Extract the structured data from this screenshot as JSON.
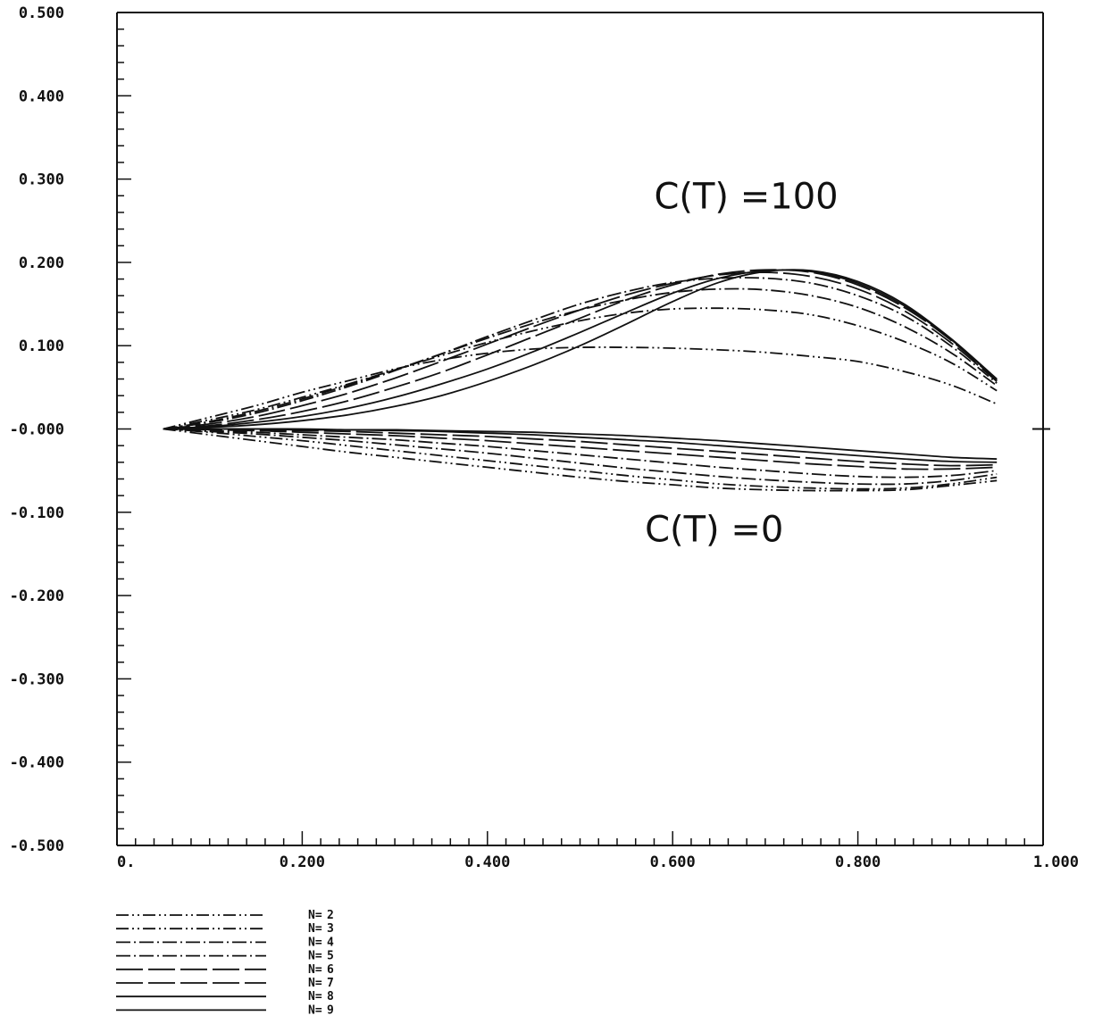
{
  "chart_data": {
    "type": "line",
    "title": "",
    "xlabel": "",
    "ylabel": "",
    "xlim": [
      0,
      1.0
    ],
    "ylim": [
      -0.5,
      0.5
    ],
    "grid": false,
    "legend_position": "bottom-left",
    "x_tick_labels": [
      "0.",
      "0.200",
      "0.400",
      "0.600",
      "0.800",
      "1.000"
    ],
    "y_tick_labels": [
      "0.500",
      "0.400",
      "0.300",
      "0.200",
      "0.100",
      "-0.000",
      "-0.100",
      "-0.200",
      "-0.300",
      "-0.400",
      "-0.500"
    ],
    "annotations": [
      {
        "text": "C(T) =100",
        "x": 0.58,
        "y": 0.265
      },
      {
        "text": "C(T) =0",
        "x": 0.57,
        "y": -0.135
      }
    ],
    "x": [
      0.05,
      0.1,
      0.15,
      0.2,
      0.25,
      0.3,
      0.35,
      0.4,
      0.45,
      0.5,
      0.55,
      0.6,
      0.65,
      0.7,
      0.75,
      0.8,
      0.85,
      0.9,
      0.95
    ],
    "series": [
      {
        "name": "N= 2",
        "dash": "dashdotdot",
        "upper": [
          0.0,
          0.014,
          0.028,
          0.044,
          0.058,
          0.072,
          0.083,
          0.091,
          0.096,
          0.098,
          0.098,
          0.097,
          0.095,
          0.092,
          0.087,
          0.081,
          0.069,
          0.053,
          0.03
        ],
        "lower": [
          0.0,
          -0.007,
          -0.014,
          -0.021,
          -0.028,
          -0.034,
          -0.04,
          -0.046,
          -0.052,
          -0.058,
          -0.063,
          -0.067,
          -0.071,
          -0.073,
          -0.074,
          -0.074,
          -0.073,
          -0.068,
          -0.062
        ]
      },
      {
        "name": "N= 3",
        "dash": "dashdotdot",
        "upper": [
          0.0,
          0.011,
          0.023,
          0.038,
          0.054,
          0.071,
          0.088,
          0.104,
          0.118,
          0.13,
          0.139,
          0.144,
          0.145,
          0.143,
          0.137,
          0.124,
          0.105,
          0.08,
          0.046
        ],
        "lower": [
          0.0,
          -0.004,
          -0.009,
          -0.014,
          -0.02,
          -0.026,
          -0.032,
          -0.038,
          -0.044,
          -0.05,
          -0.056,
          -0.061,
          -0.066,
          -0.069,
          -0.071,
          -0.072,
          -0.071,
          -0.066,
          -0.058
        ]
      },
      {
        "name": "N= 4",
        "dash": "dashdot",
        "upper": [
          0.0,
          0.009,
          0.021,
          0.036,
          0.053,
          0.071,
          0.09,
          0.109,
          0.127,
          0.143,
          0.155,
          0.164,
          0.168,
          0.167,
          0.16,
          0.146,
          0.123,
          0.092,
          0.052
        ],
        "lower": [
          0.0,
          -0.003,
          -0.006,
          -0.01,
          -0.014,
          -0.019,
          -0.024,
          -0.029,
          -0.035,
          -0.041,
          -0.047,
          -0.052,
          -0.057,
          -0.061,
          -0.064,
          -0.066,
          -0.066,
          -0.062,
          -0.054
        ]
      },
      {
        "name": "N= 5",
        "dash": "dashdot",
        "upper": [
          0.0,
          0.008,
          0.019,
          0.034,
          0.051,
          0.07,
          0.09,
          0.111,
          0.131,
          0.15,
          0.165,
          0.176,
          0.181,
          0.181,
          0.175,
          0.16,
          0.136,
          0.1,
          0.055
        ],
        "lower": [
          0.0,
          -0.002,
          -0.004,
          -0.007,
          -0.01,
          -0.013,
          -0.017,
          -0.021,
          -0.026,
          -0.031,
          -0.036,
          -0.041,
          -0.046,
          -0.05,
          -0.054,
          -0.057,
          -0.058,
          -0.056,
          -0.05
        ]
      },
      {
        "name": "N= 6",
        "dash": "longdash",
        "upper": [
          0.0,
          0.006,
          0.015,
          0.028,
          0.043,
          0.061,
          0.081,
          0.102,
          0.123,
          0.143,
          0.161,
          0.175,
          0.185,
          0.188,
          0.183,
          0.168,
          0.142,
          0.104,
          0.057
        ],
        "lower": [
          0.0,
          -0.001,
          -0.002,
          -0.004,
          -0.006,
          -0.008,
          -0.011,
          -0.014,
          -0.018,
          -0.022,
          -0.026,
          -0.03,
          -0.034,
          -0.038,
          -0.042,
          -0.045,
          -0.048,
          -0.048,
          -0.046
        ]
      },
      {
        "name": "N= 7",
        "dash": "longdash",
        "upper": [
          0.0,
          0.004,
          0.011,
          0.021,
          0.034,
          0.05,
          0.068,
          0.089,
          0.111,
          0.133,
          0.155,
          0.173,
          0.186,
          0.191,
          0.188,
          0.173,
          0.146,
          0.107,
          0.058
        ],
        "lower": [
          0.0,
          0.0,
          -0.001,
          -0.002,
          -0.003,
          -0.005,
          -0.007,
          -0.009,
          -0.012,
          -0.015,
          -0.019,
          -0.023,
          -0.027,
          -0.031,
          -0.035,
          -0.039,
          -0.042,
          -0.044,
          -0.043
        ]
      },
      {
        "name": "N= 8",
        "dash": "solid",
        "upper": [
          0.0,
          0.003,
          0.008,
          0.015,
          0.025,
          0.038,
          0.054,
          0.072,
          0.093,
          0.116,
          0.14,
          0.163,
          0.181,
          0.19,
          0.189,
          0.175,
          0.148,
          0.108,
          0.059
        ],
        "lower": [
          0.0,
          0.0,
          0.0,
          -0.001,
          -0.001,
          -0.002,
          -0.003,
          -0.005,
          -0.007,
          -0.01,
          -0.013,
          -0.016,
          -0.02,
          -0.024,
          -0.028,
          -0.032,
          -0.036,
          -0.039,
          -0.04
        ]
      },
      {
        "name": "N= 9",
        "dash": "solid",
        "upper": [
          0.0,
          0.002,
          0.005,
          0.01,
          0.017,
          0.027,
          0.04,
          0.057,
          0.077,
          0.1,
          0.126,
          0.153,
          0.176,
          0.189,
          0.19,
          0.177,
          0.15,
          0.109,
          0.06
        ],
        "lower": [
          0.0,
          0.0,
          0.0,
          0.0,
          -0.001,
          -0.001,
          -0.002,
          -0.003,
          -0.004,
          -0.006,
          -0.008,
          -0.011,
          -0.014,
          -0.018,
          -0.022,
          -0.026,
          -0.03,
          -0.034,
          -0.036
        ]
      }
    ],
    "legend": [
      {
        "prefix": "N=",
        "number": "2"
      },
      {
        "prefix": "N=",
        "number": "3"
      },
      {
        "prefix": "N=",
        "number": "4"
      },
      {
        "prefix": "N=",
        "number": "5"
      },
      {
        "prefix": "N=",
        "number": "6"
      },
      {
        "prefix": "N=",
        "number": "7"
      },
      {
        "prefix": "N=",
        "number": "8"
      },
      {
        "prefix": "N=",
        "number": "9"
      }
    ],
    "line_color": "#111111"
  }
}
